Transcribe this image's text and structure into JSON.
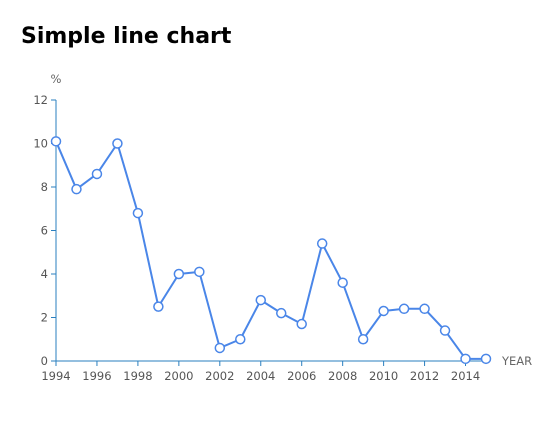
{
  "title": "Simple line chart",
  "colors": {
    "series": "#4a86e8",
    "axis": "#2a7fbf",
    "tick_label": "#555555",
    "marker_fill": "#ffffff"
  },
  "chart_data": {
    "type": "line",
    "title": "Simple line chart",
    "xlabel": "YEAR",
    "ylabel": "%",
    "xlim": [
      1994,
      2015
    ],
    "ylim": [
      0,
      12
    ],
    "x_ticks": [
      1994,
      1996,
      1998,
      2000,
      2002,
      2004,
      2006,
      2008,
      2010,
      2012,
      2014
    ],
    "y_ticks": [
      0,
      2,
      4,
      6,
      8,
      10,
      12
    ],
    "grid": false,
    "legend": "none",
    "x": [
      1994,
      1995,
      1996,
      1997,
      1998,
      1999,
      2000,
      2001,
      2002,
      2003,
      2004,
      2005,
      2006,
      2007,
      2008,
      2009,
      2010,
      2011,
      2012,
      2013,
      2014,
      2015
    ],
    "series": [
      {
        "values": [
          10.1,
          7.9,
          8.6,
          10.0,
          6.8,
          2.5,
          4.0,
          4.1,
          0.6,
          1.0,
          2.8,
          2.2,
          1.7,
          5.4,
          3.6,
          1.0,
          2.3,
          2.4,
          2.4,
          1.4,
          0.1,
          0.1
        ]
      }
    ]
  }
}
